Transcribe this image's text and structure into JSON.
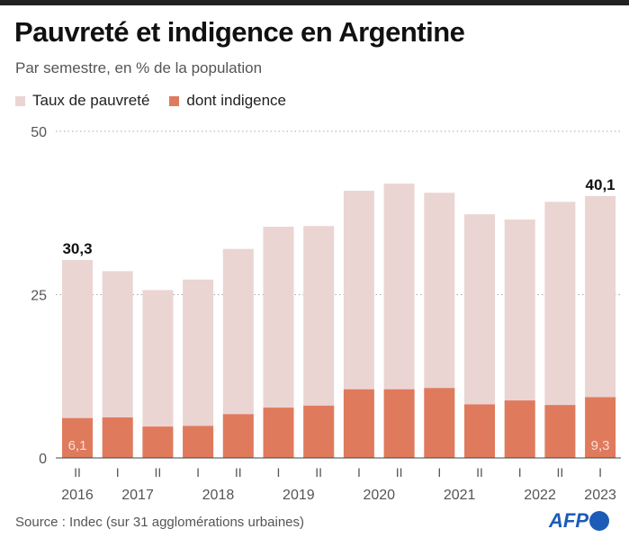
{
  "title": "Pauvreté et indigence en Argentine",
  "subtitle": "Par semestre, en % de la population",
  "source": "Source : Indec (sur 31 agglomérations urbaines)",
  "logo": "AFP",
  "chart_data": {
    "type": "bar",
    "stacking": "overlay",
    "categories": [
      "II 2016",
      "I 2017",
      "II 2017",
      "I 2018",
      "II 2018",
      "I 2019",
      "II 2019",
      "I 2020",
      "II 2020",
      "I 2021",
      "II 2021",
      "I 2022",
      "II 2022",
      "I 2023"
    ],
    "semester_labels": [
      "II",
      "I",
      "II",
      "I",
      "II",
      "I",
      "II",
      "I",
      "II",
      "I",
      "II",
      "I",
      "II",
      "I"
    ],
    "year_labels": [
      {
        "label": "2016",
        "after_bar": 0
      },
      {
        "label": "2017",
        "after_bar": 1.5
      },
      {
        "label": "2018",
        "after_bar": 3.5
      },
      {
        "label": "2019",
        "after_bar": 5.5
      },
      {
        "label": "2020",
        "after_bar": 7.5
      },
      {
        "label": "2021",
        "after_bar": 9.5
      },
      {
        "label": "2022",
        "after_bar": 11.5
      },
      {
        "label": "2023",
        "after_bar": 13
      }
    ],
    "series": [
      {
        "name": "Taux de pauvreté",
        "color": "#ead5d3",
        "values": [
          30.3,
          28.6,
          25.7,
          27.3,
          32.0,
          35.4,
          35.5,
          40.9,
          42.0,
          40.6,
          37.3,
          36.5,
          39.2,
          40.1
        ]
      },
      {
        "name": "dont indigence",
        "color": "#e07a5c",
        "values": [
          6.1,
          6.2,
          4.8,
          4.9,
          6.7,
          7.7,
          8.0,
          10.5,
          10.5,
          10.7,
          8.2,
          8.8,
          8.1,
          9.3
        ]
      }
    ],
    "data_labels": [
      {
        "bar": 0,
        "series": 0,
        "text": "30,3"
      },
      {
        "bar": 13,
        "series": 0,
        "text": "40,1"
      },
      {
        "bar": 0,
        "series": 1,
        "text": "6,1"
      },
      {
        "bar": 13,
        "series": 1,
        "text": "9,3"
      }
    ],
    "yticks": [
      {
        "value": 0,
        "label": "0"
      },
      {
        "value": 25,
        "label": "25"
      },
      {
        "value": 50,
        "label": "50"
      }
    ],
    "ylim": [
      0,
      50
    ],
    "grid": true,
    "legend": "top-left"
  }
}
